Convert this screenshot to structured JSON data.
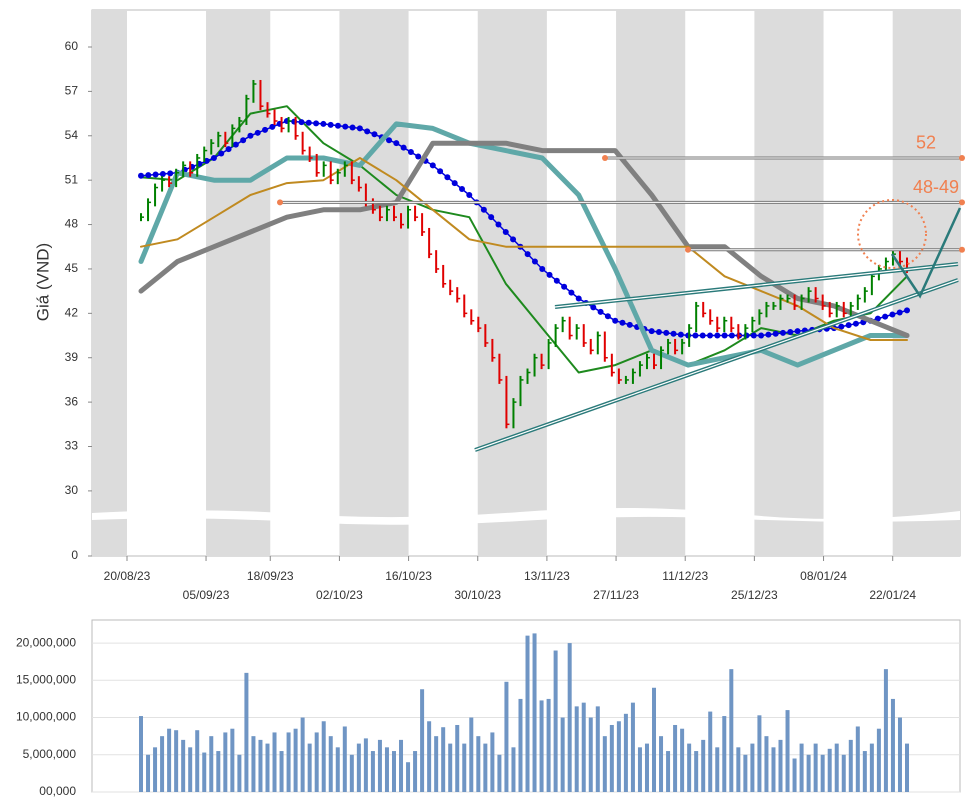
{
  "chart_data": [
    {
      "type": "price",
      "y_label": "Giá (VND)",
      "ylim": [
        0,
        62.5
      ],
      "axis_break": [
        0,
        25.6
      ],
      "yticks": [
        0,
        30,
        33,
        36,
        39,
        42,
        45,
        48,
        51,
        54,
        57,
        60
      ],
      "xticks": [
        "20/08/23",
        "05/09/23",
        "18/09/23",
        "02/10/23",
        "16/10/23",
        "30/10/23",
        "13/11/23",
        "27/11/23",
        "11/12/23",
        "25/12/23",
        "08/01/24",
        "22/01/24"
      ],
      "up_color": "#008000",
      "down_color": "#e00000",
      "values": [
        48.5,
        49.5,
        50.5,
        51,
        50.8,
        51.5,
        52,
        51.5,
        52.5,
        53,
        53.5,
        54,
        53.5,
        54.5,
        55,
        56.5,
        57.5,
        56,
        55.5,
        55,
        54.5,
        55,
        54,
        53,
        52.5,
        51.5,
        52,
        51,
        51.5,
        52,
        51,
        50.5,
        49.5,
        49,
        48.5,
        49,
        48.5,
        48,
        49,
        48.5,
        47.5,
        46,
        45,
        44,
        43.5,
        43,
        42,
        41.5,
        41,
        40,
        39,
        37.5,
        34.5,
        36,
        37.5,
        38,
        39,
        38.5,
        40,
        41,
        41.5,
        40.5,
        41,
        40,
        39.5,
        40.5,
        39,
        38,
        37.5,
        37.5,
        38,
        38.5,
        39,
        38.5,
        39.5,
        40,
        39.5,
        40,
        41,
        42.5,
        42,
        41.5,
        41,
        41.5,
        41,
        40.5,
        41,
        41.5,
        42,
        42.5,
        42.5,
        43,
        43,
        42.5,
        43,
        43.5,
        43,
        42.5,
        42,
        42.5,
        42,
        42.5,
        43,
        43.5,
        44.5,
        45,
        45.5,
        46,
        45.5,
        45
      ],
      "series": [
        {
          "color": "#1e8a1e",
          "style": "solid",
          "values": [
            51.2,
            51,
            52.5,
            55.5,
            56,
            53.5,
            52,
            50,
            49,
            48.5,
            44,
            41,
            38,
            38.5,
            39.5,
            38.5,
            39.5,
            41,
            40.5,
            41.5,
            42,
            44.5
          ]
        },
        {
          "color": "#0000dd",
          "style": "dots",
          "values": [
            51.3,
            51.5,
            52.5,
            54,
            55,
            54.8,
            54.5,
            53.5,
            52,
            50,
            47.5,
            45,
            43,
            41.5,
            40.8,
            40.5,
            40.5,
            40.5,
            40.8,
            41,
            41.5,
            42.2
          ]
        },
        {
          "color": "#5fa8a8",
          "style": "thick",
          "values": [
            45.5,
            51.5,
            51,
            51,
            52.5,
            52.5,
            52,
            54.8,
            54.5,
            53.5,
            53,
            52.5,
            50,
            45,
            39.5,
            38.5,
            39,
            39.5,
            38.5,
            39.5,
            40.5,
            40.5
          ]
        },
        {
          "color": "#808080",
          "style": "thick",
          "values": [
            43.5,
            45.5,
            46.5,
            47.5,
            48.5,
            49,
            49,
            49.5,
            53.5,
            53.5,
            53.5,
            53,
            53,
            53,
            50,
            46.5,
            46.5,
            44.5,
            43,
            42.5,
            41.5,
            40.5
          ]
        },
        {
          "color": "#c08a20",
          "style": "solid",
          "values": [
            46.5,
            47,
            48.5,
            50,
            50.8,
            51,
            52.5,
            51,
            49,
            47,
            46.5,
            46.5,
            46.5,
            46.5,
            46.5,
            46.5,
            44.5,
            43.5,
            42.5,
            41,
            40.2,
            40.2
          ]
        }
      ],
      "levels": [
        52.5,
        49.5,
        46.3
      ],
      "annotations": [
        "52",
        "48-49"
      ]
    },
    {
      "type": "volume",
      "color": "#6f95c4",
      "ylim": [
        0,
        23100000
      ],
      "yticks": [
        {
          "value": 0,
          "label": "00,000"
        },
        {
          "value": 5000000,
          "label": "5,000,000"
        },
        {
          "value": 10000000,
          "label": "10,000,000"
        },
        {
          "value": 15000000,
          "label": "15,000,000"
        },
        {
          "value": 20000000,
          "label": "20,000,000"
        }
      ],
      "values": [
        10200000,
        5000000,
        6000000,
        7500000,
        8500000,
        8300000,
        7000000,
        6000000,
        8300000,
        5300000,
        7500000,
        5500000,
        8000000,
        8500000,
        5000000,
        16000000,
        7500000,
        7000000,
        6500000,
        8000000,
        5500000,
        8000000,
        8500000,
        10000000,
        6500000,
        8000000,
        9500000,
        7500000,
        6000000,
        8800000,
        5000000,
        6500000,
        7200000,
        5500000,
        7000000,
        6000000,
        5500000,
        7000000,
        4000000,
        5500000,
        13800000,
        9500000,
        7500000,
        8700000,
        6500000,
        9000000,
        6500000,
        10000000,
        7500000,
        6500000,
        8000000,
        5000000,
        14800000,
        6000000,
        12500000,
        21000000,
        21300000,
        12300000,
        12500000,
        19000000,
        10000000,
        20000000,
        11500000,
        12000000,
        10000000,
        11500000,
        7500000,
        9000000,
        9500000,
        10500000,
        12000000,
        6000000,
        6500000,
        14000000,
        7500000,
        5500000,
        9000000,
        8500000,
        6500000,
        5500000,
        7000000,
        10800000,
        6000000,
        10200000,
        16500000,
        6000000,
        5000000,
        6500000,
        10300000,
        7500000,
        6000000,
        7000000,
        11000000,
        4500000,
        6500000,
        5000000,
        6500000,
        5000000,
        5800000,
        6500000,
        5000000,
        7000000,
        8800000,
        5500000,
        6500000,
        8500000,
        16500000,
        12500000,
        10000000,
        6500000
      ]
    }
  ]
}
